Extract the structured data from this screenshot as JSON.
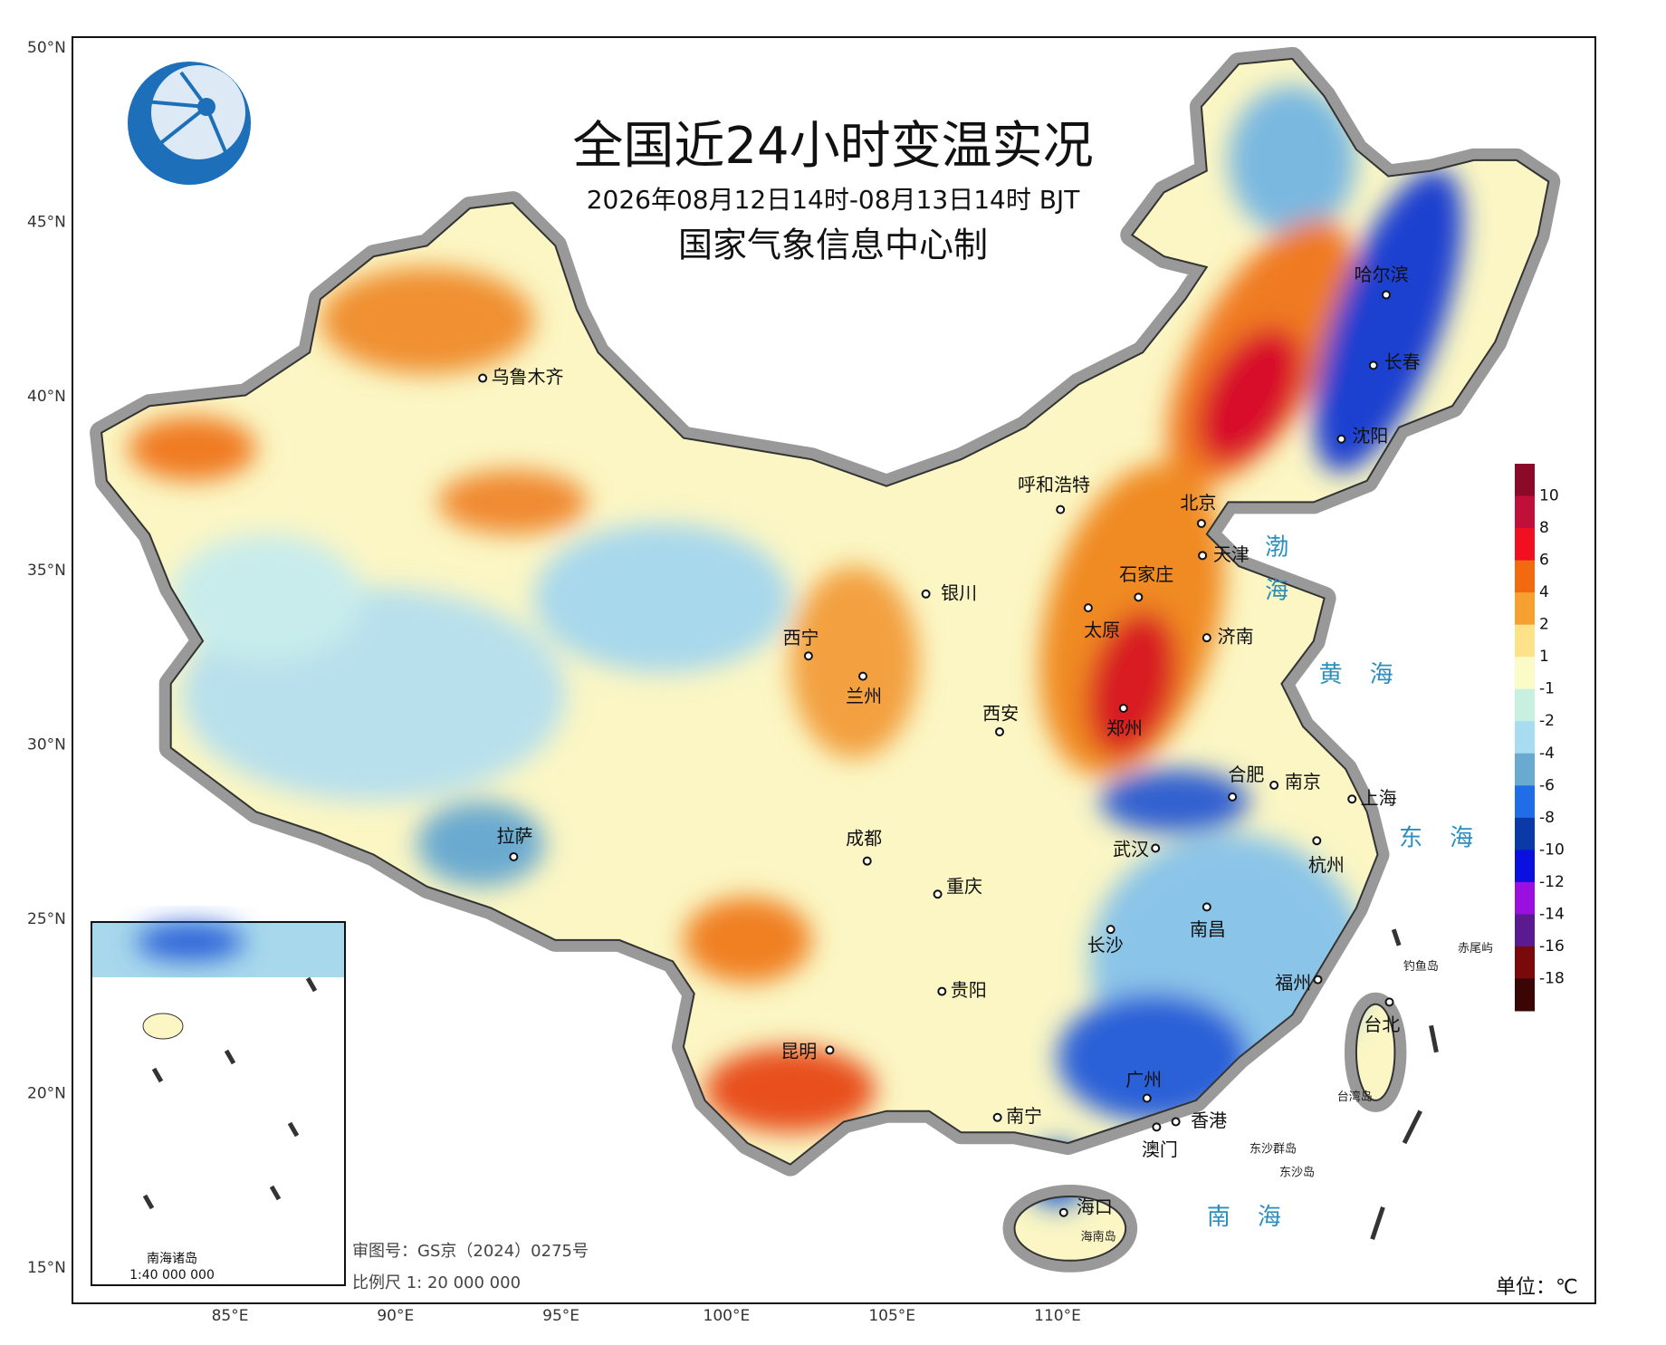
{
  "header": {
    "title": "全国近24小时变温实况",
    "subtitle": "2026年08月12日14时-08月13日14时 BJT",
    "producer": "国家气象信息中心制"
  },
  "axes": {
    "lat_labels": [
      "50°N",
      "45°N",
      "40°N",
      "35°N",
      "30°N",
      "25°N",
      "20°N",
      "15°N"
    ],
    "lon_labels": [
      "85°E",
      "90°E",
      "95°E",
      "100°E",
      "105°E",
      "110°E"
    ]
  },
  "cities": [
    "乌鲁木齐",
    "哈尔滨",
    "长春",
    "沈阳",
    "呼和浩特",
    "北京",
    "天津",
    "石家庄",
    "银川",
    "太原",
    "济南",
    "西宁",
    "兰州",
    "西安",
    "郑州",
    "合肥",
    "南京",
    "上海",
    "拉萨",
    "成都",
    "武汉",
    "杭州",
    "重庆",
    "南昌",
    "长沙",
    "福州",
    "贵阳",
    "台北",
    "昆明",
    "广州",
    "南宁",
    "香港",
    "澳门",
    "海口"
  ],
  "seas": [
    "渤海",
    "黄海",
    "东海",
    "南海"
  ],
  "islands": [
    "钓鱼岛",
    "赤尾屿",
    "台湾岛",
    "东沙群岛",
    "东沙岛",
    "海南岛"
  ],
  "inset": {
    "title": "南海诸岛",
    "scale": "1:40 000 000"
  },
  "footer": {
    "review_number": "审图号：GS京（2024）0275号",
    "scale": "比例尺 1: 20 000 000"
  },
  "legend": {
    "unit": "单位：℃",
    "ticks": [
      10,
      8,
      6,
      4,
      2,
      1,
      -1,
      -2,
      -4,
      -6,
      -8,
      -10,
      -12,
      -14,
      -16,
      -18
    ],
    "colors": [
      "#8b0a28",
      "#c0103a",
      "#f01020",
      "#f26a10",
      "#f5a030",
      "#fde28a",
      "#fbfbc8",
      "#c8f0e0",
      "#a8dcf0",
      "#6aaad0",
      "#1f6ee8",
      "#0a3aa8",
      "#0a10e0",
      "#9a10e0",
      "#5a1a90",
      "#7a0a0a",
      "#3a0505"
    ]
  }
}
